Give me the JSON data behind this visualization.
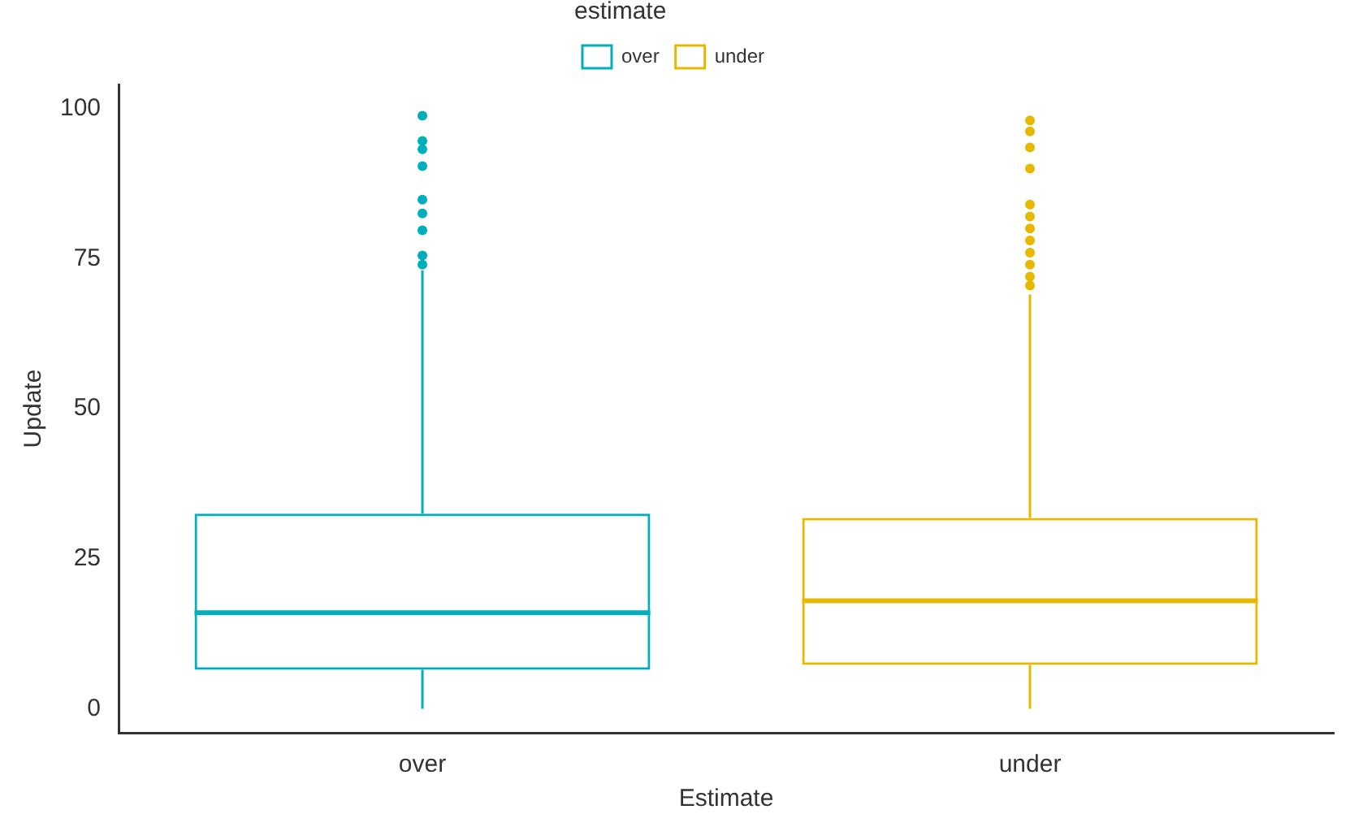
{
  "chart_data": {
    "type": "box",
    "xlabel": "Estimate",
    "ylabel": "Update",
    "legend_title": "estimate",
    "legend": "top",
    "categories": [
      "over",
      "under"
    ],
    "series": [
      {
        "name": "over",
        "color": "#00afbb",
        "boxes": [
          {
            "low": 0,
            "q1": 6.5,
            "median": 16,
            "q3": 32.5,
            "high": 73,
            "outliers": [
              98.8,
              94.6,
              93.2,
              90.4,
              84.8,
              82.5,
              79.7,
              75.5,
              74
            ]
          },
          null
        ]
      },
      {
        "name": "under",
        "color": "#e7b800",
        "boxes": [
          null,
          {
            "low": 0,
            "q1": 7.3,
            "median": 18,
            "q3": 31.8,
            "high": 69,
            "outliers": [
              98,
              96.2,
              93.5,
              90,
              84,
              82,
              80,
              78,
              76,
              74,
              72,
              70.5
            ]
          }
        ]
      }
    ],
    "ylim": [
      -4,
      104
    ],
    "yticks": [
      0,
      25,
      50,
      75,
      100
    ],
    "grid": false
  }
}
